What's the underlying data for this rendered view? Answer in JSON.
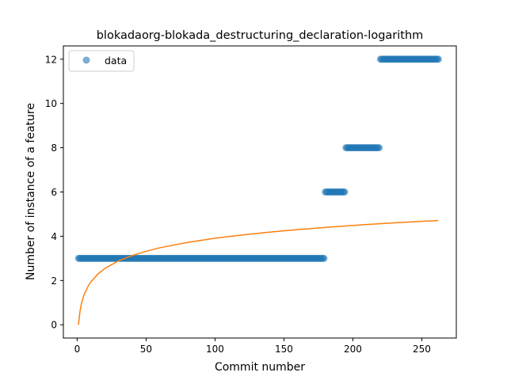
{
  "chart_data": {
    "type": "scatter",
    "title": "blokadaorg-blokada_destructuring_declaration-logarithm",
    "xlabel": "Commit number",
    "ylabel": "Number of instance of a feature",
    "xlim": [
      -10,
      275
    ],
    "ylim": [
      -0.6,
      12.6
    ],
    "xticks": [
      0,
      50,
      100,
      150,
      200,
      250
    ],
    "yticks": [
      0,
      2,
      4,
      6,
      8,
      10,
      12
    ],
    "grid": false,
    "legend_position": "top-left",
    "series": [
      {
        "name": "data",
        "kind": "scatter",
        "color": "#1f77b4",
        "alpha": 0.6,
        "segments": [
          {
            "x_start": 1,
            "x_end": 179,
            "y": 3
          },
          {
            "x_start": 180,
            "x_end": 194,
            "y": 6
          },
          {
            "x_start": 195,
            "x_end": 219,
            "y": 8
          },
          {
            "x_start": 220,
            "x_end": 262,
            "y": 12
          }
        ]
      },
      {
        "kind": "line",
        "color": "#ff7f0e",
        "fit": "logarithmic",
        "points": [
          [
            1,
            0.0
          ],
          [
            2,
            0.58
          ],
          [
            3,
            0.93
          ],
          [
            5,
            1.36
          ],
          [
            8,
            1.75
          ],
          [
            10,
            1.94
          ],
          [
            15,
            2.29
          ],
          [
            20,
            2.54
          ],
          [
            30,
            2.89
          ],
          [
            40,
            3.13
          ],
          [
            50,
            3.32
          ],
          [
            60,
            3.48
          ],
          [
            80,
            3.72
          ],
          [
            100,
            3.91
          ],
          [
            120,
            4.06
          ],
          [
            140,
            4.19
          ],
          [
            160,
            4.3
          ],
          [
            180,
            4.4
          ],
          [
            200,
            4.49
          ],
          [
            220,
            4.57
          ],
          [
            240,
            4.64
          ],
          [
            262,
            4.71
          ]
        ]
      }
    ]
  }
}
